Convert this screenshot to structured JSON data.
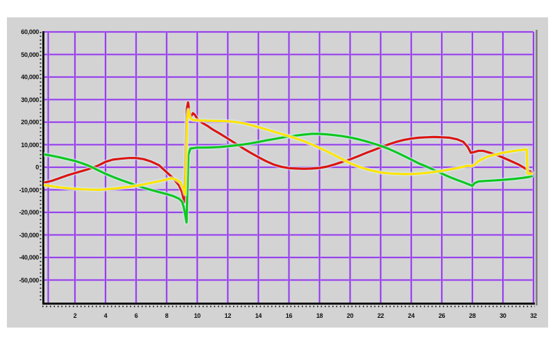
{
  "window": {
    "background_color": "#ffffff",
    "panel_color": "#d3d3d3"
  },
  "chart_data": {
    "type": "line",
    "title": "",
    "xlabel": "",
    "ylabel": "",
    "xlim": [
      0,
      32
    ],
    "ylim": [
      -60000,
      60000
    ],
    "grid": true,
    "legend": "none",
    "grid_color": "#8e32e8",
    "grid_halo_color": "#c9a6f2",
    "axis_color": "#111111",
    "plot_shadow_color": "#7a7a7a",
    "x_ticks": [
      2,
      4,
      6,
      8,
      10,
      12,
      14,
      16,
      18,
      20,
      22,
      24,
      26,
      28,
      30,
      32
    ],
    "x_tick_labels": [
      "2",
      "4",
      "6",
      "8",
      "10",
      "12",
      "14",
      "16",
      "18",
      "20",
      "22",
      "24",
      "26",
      "28",
      "30",
      "32"
    ],
    "y_ticks": [
      60000,
      50000,
      40000,
      30000,
      20000,
      10000,
      0,
      -10000,
      -20000,
      -30000,
      -40000,
      -50000
    ],
    "y_tick_labels": [
      "60,000",
      "50,000",
      "40,000",
      "30,000",
      "20,000",
      "10,000",
      "0",
      "-10,000",
      "-20,000",
      "-30,000",
      "-40,000",
      "-50,000"
    ],
    "series": [
      {
        "name": "red-trace",
        "color": "#dd1511",
        "halo_color": "#d6ecf4",
        "points": [
          [
            0,
            -6800
          ],
          [
            0.5,
            -6000
          ],
          [
            1,
            -4800
          ],
          [
            1.5,
            -3600
          ],
          [
            2,
            -2600
          ],
          [
            2.5,
            -1600
          ],
          [
            3,
            -600
          ],
          [
            3.5,
            700
          ],
          [
            4,
            2400
          ],
          [
            4.5,
            3400
          ],
          [
            5,
            3800
          ],
          [
            5.5,
            4100
          ],
          [
            6,
            4100
          ],
          [
            6.5,
            3600
          ],
          [
            7,
            2500
          ],
          [
            7.5,
            900
          ],
          [
            8,
            -2200
          ],
          [
            8.4,
            -4700
          ],
          [
            8.8,
            -8000
          ],
          [
            9,
            -11000
          ],
          [
            9.15,
            -15500
          ],
          [
            9.32,
            26000
          ],
          [
            9.4,
            28800
          ],
          [
            9.5,
            24000
          ],
          [
            9.6,
            22600
          ],
          [
            9.72,
            24000
          ],
          [
            9.85,
            23200
          ],
          [
            10,
            21500
          ],
          [
            10.3,
            19800
          ],
          [
            10.7,
            18200
          ],
          [
            11,
            16800
          ],
          [
            11.5,
            14800
          ],
          [
            12,
            12700
          ],
          [
            12.5,
            10600
          ],
          [
            13,
            8400
          ],
          [
            13.5,
            6400
          ],
          [
            14,
            4500
          ],
          [
            14.5,
            2700
          ],
          [
            15,
            1200
          ],
          [
            15.5,
            200
          ],
          [
            16,
            -400
          ],
          [
            16.5,
            -600
          ],
          [
            17,
            -700
          ],
          [
            17.5,
            -600
          ],
          [
            18,
            -300
          ],
          [
            18.5,
            300
          ],
          [
            19,
            1300
          ],
          [
            19.5,
            2400
          ],
          [
            20,
            3500
          ],
          [
            20.5,
            4800
          ],
          [
            21,
            6200
          ],
          [
            21.5,
            7500
          ],
          [
            22,
            8800
          ],
          [
            22.5,
            10100
          ],
          [
            23,
            11200
          ],
          [
            23.5,
            12100
          ],
          [
            24,
            12700
          ],
          [
            24.5,
            13100
          ],
          [
            25,
            13300
          ],
          [
            25.5,
            13400
          ],
          [
            26,
            13300
          ],
          [
            26.5,
            13100
          ],
          [
            27,
            12400
          ],
          [
            27.4,
            11300
          ],
          [
            27.7,
            9000
          ],
          [
            27.9,
            6400
          ],
          [
            28.1,
            6700
          ],
          [
            28.4,
            7300
          ],
          [
            28.7,
            7300
          ],
          [
            29,
            6700
          ],
          [
            29.5,
            5700
          ],
          [
            30,
            4300
          ],
          [
            30.5,
            2800
          ],
          [
            31,
            1300
          ],
          [
            31.4,
            -300
          ],
          [
            31.7,
            -1500
          ],
          [
            31.9,
            -2300
          ]
        ]
      },
      {
        "name": "green-trace",
        "color": "#0fc81e",
        "halo_color": "#d6ecf4",
        "points": [
          [
            0,
            5700
          ],
          [
            0.5,
            5100
          ],
          [
            1,
            4400
          ],
          [
            1.5,
            3600
          ],
          [
            2,
            2800
          ],
          [
            2.5,
            1700
          ],
          [
            3,
            400
          ],
          [
            3.5,
            -1300
          ],
          [
            4,
            -2900
          ],
          [
            4.5,
            -4300
          ],
          [
            5,
            -5600
          ],
          [
            5.5,
            -6800
          ],
          [
            6,
            -8000
          ],
          [
            6.5,
            -9100
          ],
          [
            7,
            -10100
          ],
          [
            7.5,
            -11000
          ],
          [
            8,
            -11900
          ],
          [
            8.4,
            -12700
          ],
          [
            8.8,
            -13900
          ],
          [
            9,
            -15200
          ],
          [
            9.1,
            -17200
          ],
          [
            9.2,
            -20500
          ],
          [
            9.3,
            -24500
          ],
          [
            9.42,
            5500
          ],
          [
            9.55,
            8300
          ],
          [
            10,
            8700
          ],
          [
            10.5,
            8700
          ],
          [
            11,
            8800
          ],
          [
            11.5,
            9000
          ],
          [
            12,
            9300
          ],
          [
            12.5,
            9700
          ],
          [
            13,
            10100
          ],
          [
            13.5,
            10600
          ],
          [
            14,
            11200
          ],
          [
            14.5,
            11900
          ],
          [
            15,
            12500
          ],
          [
            15.5,
            13100
          ],
          [
            16,
            13600
          ],
          [
            16.5,
            14100
          ],
          [
            17,
            14500
          ],
          [
            17.5,
            14800
          ],
          [
            18,
            14800
          ],
          [
            18.5,
            14600
          ],
          [
            19,
            14200
          ],
          [
            19.5,
            13800
          ],
          [
            20,
            13200
          ],
          [
            20.5,
            12500
          ],
          [
            21,
            11600
          ],
          [
            21.5,
            10600
          ],
          [
            22,
            9500
          ],
          [
            22.5,
            8200
          ],
          [
            23,
            6700
          ],
          [
            23.5,
            5100
          ],
          [
            24,
            3400
          ],
          [
            24.5,
            1700
          ],
          [
            25,
            300
          ],
          [
            25.5,
            -1200
          ],
          [
            26,
            -2800
          ],
          [
            26.5,
            -4300
          ],
          [
            27,
            -5600
          ],
          [
            27.5,
            -6900
          ],
          [
            27.8,
            -7700
          ],
          [
            28,
            -8200
          ],
          [
            28.15,
            -7000
          ],
          [
            28.4,
            -6300
          ],
          [
            28.8,
            -6100
          ],
          [
            29.3,
            -5900
          ],
          [
            29.8,
            -5700
          ],
          [
            30.3,
            -5400
          ],
          [
            30.8,
            -5100
          ],
          [
            31.3,
            -4700
          ],
          [
            31.7,
            -4300
          ],
          [
            31.9,
            -3900
          ]
        ]
      },
      {
        "name": "yellow-trace",
        "color": "#ffe400",
        "halo_color": "#d6ecf4",
        "points": [
          [
            0,
            -7900
          ],
          [
            0.5,
            -8400
          ],
          [
            1,
            -8900
          ],
          [
            1.5,
            -9300
          ],
          [
            2,
            -9600
          ],
          [
            2.5,
            -9800
          ],
          [
            3,
            -9900
          ],
          [
            3.5,
            -10000
          ],
          [
            4,
            -9800
          ],
          [
            4.5,
            -9500
          ],
          [
            5,
            -9100
          ],
          [
            5.5,
            -8700
          ],
          [
            6,
            -8200
          ],
          [
            6.5,
            -7600
          ],
          [
            7,
            -6900
          ],
          [
            7.5,
            -6200
          ],
          [
            8,
            -5400
          ],
          [
            8.3,
            -4900
          ],
          [
            8.6,
            -5400
          ],
          [
            8.9,
            -6700
          ],
          [
            9.1,
            -9500
          ],
          [
            9.2,
            -12000
          ],
          [
            9.33,
            21000
          ],
          [
            9.42,
            25500
          ],
          [
            9.52,
            22200
          ],
          [
            9.7,
            21000
          ],
          [
            10,
            20800
          ],
          [
            10.5,
            20700
          ],
          [
            11,
            20600
          ],
          [
            11.5,
            20500
          ],
          [
            12,
            20400
          ],
          [
            12.5,
            20100
          ],
          [
            13,
            19500
          ],
          [
            13.5,
            18700
          ],
          [
            14,
            17800
          ],
          [
            14.5,
            16800
          ],
          [
            15,
            15800
          ],
          [
            15.5,
            14800
          ],
          [
            16,
            13800
          ],
          [
            16.5,
            12700
          ],
          [
            17,
            11500
          ],
          [
            17.5,
            10100
          ],
          [
            18,
            8600
          ],
          [
            18.5,
            7000
          ],
          [
            19,
            5300
          ],
          [
            19.5,
            3500
          ],
          [
            20,
            1800
          ],
          [
            20.5,
            400
          ],
          [
            21,
            -700
          ],
          [
            21.5,
            -1600
          ],
          [
            22,
            -2300
          ],
          [
            22.5,
            -2700
          ],
          [
            23,
            -2900
          ],
          [
            23.5,
            -3000
          ],
          [
            24,
            -3000
          ],
          [
            24.5,
            -2800
          ],
          [
            25,
            -2500
          ],
          [
            25.5,
            -2100
          ],
          [
            26,
            -1600
          ],
          [
            26.5,
            -1000
          ],
          [
            27,
            -400
          ],
          [
            27.4,
            200
          ],
          [
            27.7,
            700
          ],
          [
            27.9,
            500
          ],
          [
            28.1,
            900
          ],
          [
            28.4,
            2700
          ],
          [
            28.7,
            3800
          ],
          [
            29,
            4700
          ],
          [
            29.5,
            5600
          ],
          [
            30,
            6400
          ],
          [
            30.5,
            7000
          ],
          [
            31,
            7500
          ],
          [
            31.3,
            7700
          ],
          [
            31.55,
            8000
          ],
          [
            31.62,
            -2900
          ],
          [
            31.9,
            -2800
          ]
        ]
      }
    ]
  }
}
